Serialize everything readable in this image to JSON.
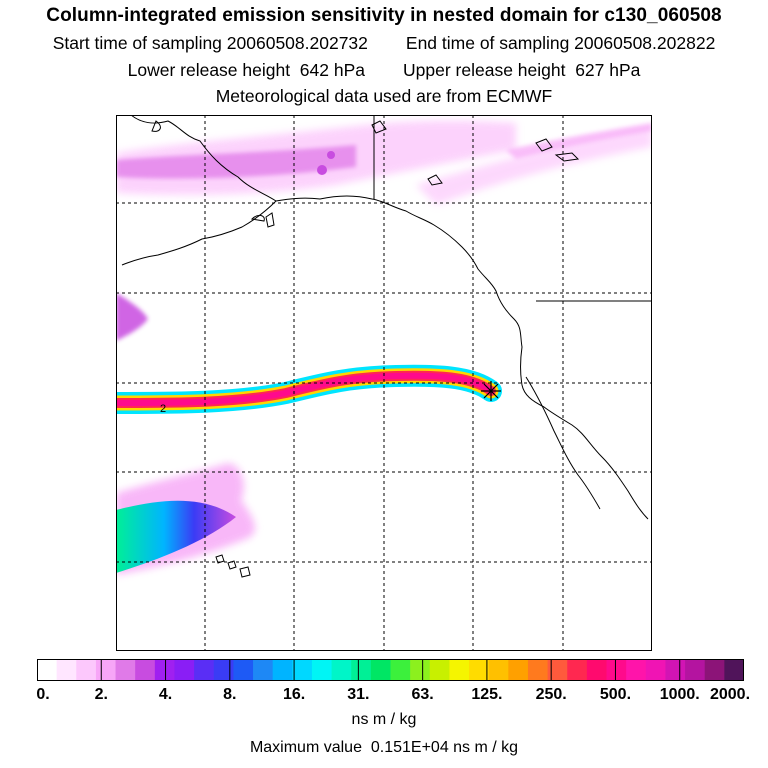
{
  "header": {
    "title": "Column-integrated emission sensitivity in nested domain for c130_060508",
    "start_label": "Start time of sampling 20060508.202732",
    "end_label": "End time of sampling 20060508.202822",
    "lower_label": "Lower release height  642 hPa",
    "upper_label": "Upper release height  627 hPa",
    "met_label": "Meteorological data used are from ECMWF"
  },
  "map": {
    "plume_label": "2",
    "release_marker": "release-point-star",
    "colors": {
      "coast": "#000000",
      "grid": "#000000",
      "plume_core": "#ff0080",
      "plume_edge": "#00e5ff"
    }
  },
  "colorbar": {
    "ticks": [
      "0.",
      "2.",
      "4.",
      "8.",
      "16.",
      "31.",
      "63.",
      "125.",
      "250.",
      "500.",
      "1000.",
      "2000."
    ],
    "colors": [
      "#ffffff",
      "#ffe6ff",
      "#fcc8fc",
      "#f7a6f7",
      "#e07ae8",
      "#c84ce0",
      "#a020f0",
      "#8a1ef5",
      "#5a2ef5",
      "#3a3cf5",
      "#1e5af5",
      "#1e88f5",
      "#00b4ff",
      "#00d8ff",
      "#00f5f5",
      "#00f5c8",
      "#00f096",
      "#00e664",
      "#3cf03c",
      "#8cf01e",
      "#c8f000",
      "#f5f500",
      "#ffdc00",
      "#ffc000",
      "#ffa000",
      "#ff7a1e",
      "#ff5a3c",
      "#ff2850",
      "#ff0a6e",
      "#ff0a8c",
      "#ff14aa",
      "#f014b4",
      "#d214b4",
      "#b414a0",
      "#8c1478",
      "#50145a"
    ],
    "unit": "ns m / kg",
    "max_value": "Maximum value  0.151E+04 ns m / kg"
  }
}
